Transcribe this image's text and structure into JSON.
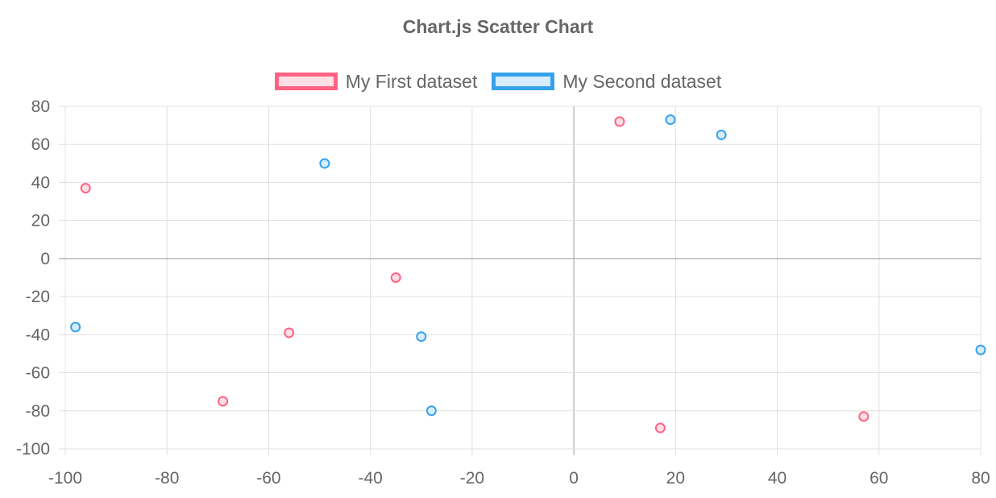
{
  "chart_data": {
    "type": "scatter",
    "title": "Chart.js Scatter Chart",
    "xlabel": "",
    "ylabel": "",
    "xlim": [
      -100,
      80
    ],
    "ylim": [
      -100,
      80
    ],
    "x_ticks": [
      "-100",
      "-80",
      "-60",
      "-40",
      "-20",
      "0",
      "20",
      "40",
      "60",
      "80"
    ],
    "y_ticks": [
      "80",
      "60",
      "40",
      "20",
      "0",
      "-20",
      "-40",
      "-60",
      "-80",
      "-100"
    ],
    "grid": true,
    "legend_position": "top-center",
    "series": [
      {
        "name": "My First dataset",
        "border_color": "#ff6384",
        "fill_color": "#ffdfe6",
        "points": [
          {
            "x": -96,
            "y": 37
          },
          {
            "x": -69,
            "y": -75
          },
          {
            "x": -56,
            "y": -39
          },
          {
            "x": -35,
            "y": -10
          },
          {
            "x": 9,
            "y": 72
          },
          {
            "x": 17,
            "y": -89
          },
          {
            "x": 57,
            "y": -83
          }
        ]
      },
      {
        "name": "My Second dataset",
        "border_color": "#36a2eb",
        "fill_color": "#d7ecfb",
        "points": [
          {
            "x": -98,
            "y": -36
          },
          {
            "x": -49,
            "y": 50
          },
          {
            "x": -30,
            "y": -41
          },
          {
            "x": -28,
            "y": -80
          },
          {
            "x": 19,
            "y": 73
          },
          {
            "x": 29,
            "y": 65
          },
          {
            "x": 80,
            "y": -48
          }
        ]
      }
    ]
  }
}
